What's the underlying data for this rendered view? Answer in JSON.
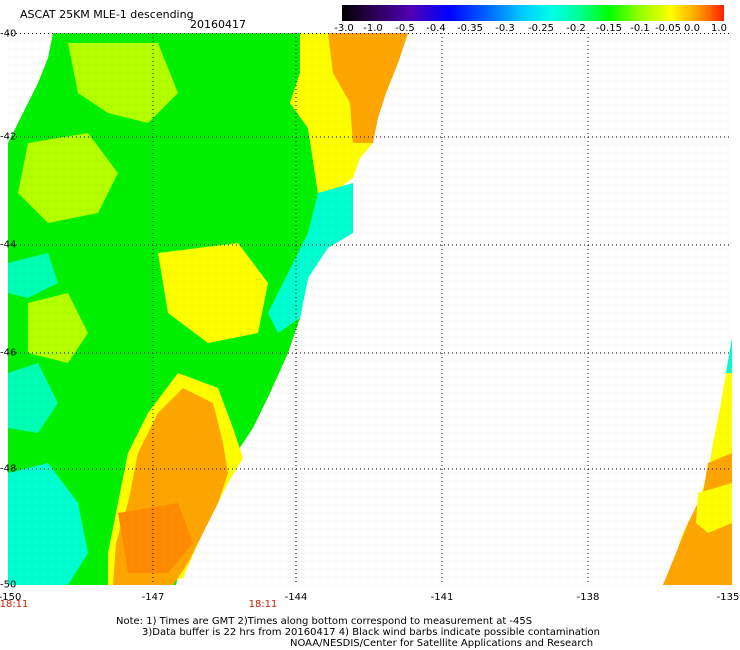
{
  "header": {
    "title": "ASCAT 25KM MLE-1 descending",
    "date": "20160417"
  },
  "colorbar": {
    "labels": [
      "-3.0",
      "-1.0",
      "-0.5",
      "-0.4",
      "-0.35",
      "-0.3",
      "-0.25",
      "-0.2",
      "-0.15",
      "-0.1",
      "-0.05",
      "0.0",
      "1.0"
    ],
    "colors": [
      "#000000",
      "#2a0050",
      "#5000b4",
      "#0000ff",
      "#0064ff",
      "#00c8ff",
      "#00ffe6",
      "#00ff96",
      "#00ff00",
      "#96ff00",
      "#ffff00",
      "#ffa000",
      "#ff2000"
    ]
  },
  "map": {
    "lat_labels": [
      "-40",
      "-42",
      "-44",
      "-46",
      "-48",
      "-50"
    ],
    "lon_labels": [
      "-150",
      "-147",
      "-144",
      "-141",
      "-138",
      "-135"
    ],
    "times": [
      "18:11",
      "18:11"
    ],
    "swath_colors": {
      "green": "#00f000",
      "lightgreen": "#66ff00",
      "yellowgreen": "#b4ff00",
      "yellow": "#ffff00",
      "orange": "#ffa500",
      "darkorange": "#ff8c00",
      "cyan": "#00ffd0",
      "teal": "#00ffb4"
    }
  },
  "notes": {
    "line1": "Note: 1) Times are GMT 2)Times along bottom correspond to measurement at -45S",
    "line2": "3)Data buffer is 22 hrs from 20160417 4) Black wind barbs indicate possible contamination",
    "line3": "NOAA/NESDIS/Center for Satellite Applications and Research"
  }
}
